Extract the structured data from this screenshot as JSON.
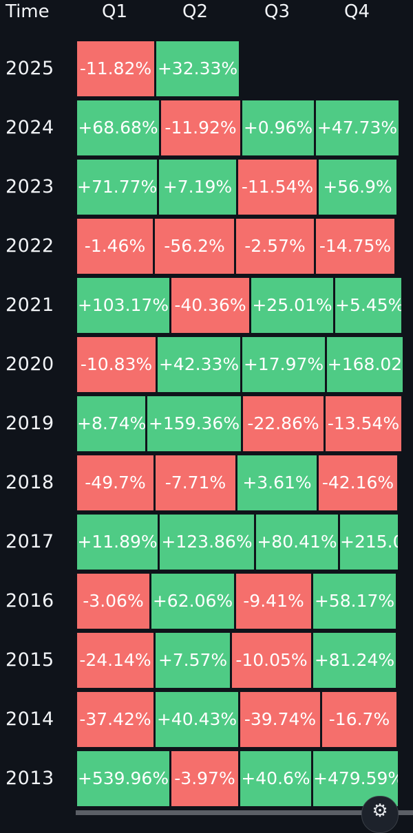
{
  "colors": {
    "positive": "#4fcb85",
    "negative": "#f56f6c",
    "background": "#0f131a"
  },
  "header": {
    "time_label": "Time",
    "quarters": [
      "Q1",
      "Q2",
      "Q3",
      "Q4"
    ]
  },
  "rows": [
    {
      "year": "2025",
      "values": [
        "-11.82%",
        "+32.33%",
        "",
        ""
      ]
    },
    {
      "year": "2024",
      "values": [
        "+68.68%",
        "-11.92%",
        "+0.96%",
        "+47.73%"
      ]
    },
    {
      "year": "2023",
      "values": [
        "+71.77%",
        "+7.19%",
        "-11.54%",
        "+56.9%"
      ]
    },
    {
      "year": "2022",
      "values": [
        "-1.46%",
        "-56.2%",
        "-2.57%",
        "-14.75%"
      ]
    },
    {
      "year": "2021",
      "values": [
        "+103.17%",
        "-40.36%",
        "+25.01%",
        "+5.45%"
      ]
    },
    {
      "year": "2020",
      "values": [
        "-10.83%",
        "+42.33%",
        "+17.97%",
        "+168.02"
      ]
    },
    {
      "year": "2019",
      "values": [
        "+8.74%",
        "+159.36%",
        "-22.86%",
        "-13.54%"
      ]
    },
    {
      "year": "2018",
      "values": [
        "-49.7%",
        "-7.71%",
        "+3.61%",
        "-42.16%"
      ]
    },
    {
      "year": "2017",
      "values": [
        "+11.89%",
        "+123.86%",
        "+80.41%",
        "+215.0"
      ]
    },
    {
      "year": "2016",
      "values": [
        "-3.06%",
        "+62.06%",
        "-9.41%",
        "+58.17%"
      ]
    },
    {
      "year": "2015",
      "values": [
        "-24.14%",
        "+7.57%",
        "-10.05%",
        "+81.24%"
      ]
    },
    {
      "year": "2014",
      "values": [
        "-37.42%",
        "+40.43%",
        "-39.74%",
        "-16.7%"
      ]
    },
    {
      "year": "2013",
      "values": [
        "+539.96%",
        "-3.97%",
        "+40.6%",
        "+479.59%"
      ]
    }
  ],
  "settings_icon": "gear-icon"
}
